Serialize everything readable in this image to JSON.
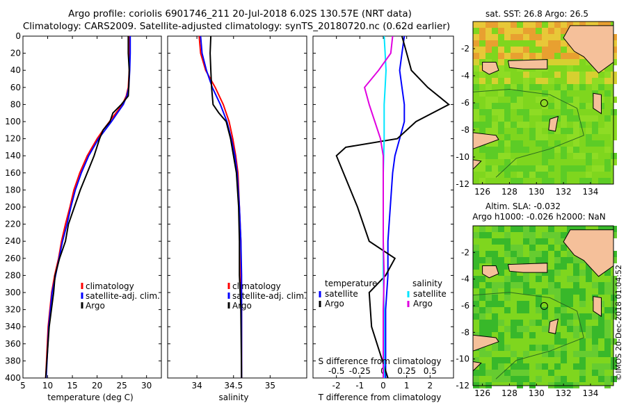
{
  "title": {
    "line1": "Argo profile: coriolis 6901746_211 20-Jul-2018 6.02S 130.57E (NRT data)",
    "line2": "Climatology: CARS2009. Satellite-adjusted climatology: synTS_20180720.nc (0.62d earlier)"
  },
  "colors": {
    "climatology": "#ff0000",
    "satellite": "#0000ff",
    "argo": "#000000",
    "t_satellite": "#0000ff",
    "s_satellite": "#00e5ff",
    "s_argo": "#e000e0",
    "ocean_deep": "#3fbf25",
    "ocean_mid": "#7fd61e",
    "land": "#f5c09a",
    "warm": "#e6a020"
  },
  "chart_data": [
    {
      "type": "line",
      "name": "temperature-panel",
      "xlabel": "temperature (deg C)",
      "ylabel": "",
      "xlim": [
        5,
        33
      ],
      "ylim": [
        400,
        0
      ],
      "xticks": [
        "5",
        "10",
        "15",
        "20",
        "25",
        "30"
      ],
      "xtick_values": [
        5,
        10,
        15,
        20,
        25,
        30
      ],
      "yticks": [
        "0",
        "20",
        "40",
        "60",
        "80",
        "100",
        "120",
        "140",
        "160",
        "180",
        "200",
        "220",
        "240",
        "260",
        "280",
        "300",
        "320",
        "340",
        "360",
        "380",
        "400"
      ],
      "ytick_values": [
        0,
        20,
        40,
        60,
        80,
        100,
        120,
        140,
        160,
        180,
        200,
        220,
        240,
        260,
        280,
        300,
        320,
        340,
        360,
        380,
        400
      ],
      "legend": [
        "climatology",
        "satellite-adj. clim.",
        "Argo"
      ],
      "series": [
        {
          "name": "climatology",
          "color": "#ff0000",
          "x": [
            26.6,
            26.6,
            26.5,
            26.3,
            25.9,
            25.1,
            23.8,
            22.5,
            21.2,
            20.0,
            18.0,
            16.5,
            15.3,
            14.5,
            13.6,
            12.8,
            12.2,
            11.4,
            10.8,
            10.1,
            9.6
          ],
          "y": [
            0,
            20,
            40,
            60,
            70,
            80,
            90,
            100,
            110,
            120,
            140,
            160,
            180,
            200,
            220,
            240,
            260,
            280,
            300,
            340,
            400
          ]
        },
        {
          "name": "satellite-adj. clim.",
          "color": "#0000ff",
          "x": [
            26.7,
            26.7,
            26.6,
            26.4,
            26.0,
            25.3,
            24.1,
            22.9,
            21.6,
            20.3,
            18.3,
            16.8,
            15.6,
            14.7,
            13.9,
            13.0,
            12.3,
            11.6,
            10.9,
            10.2,
            9.7
          ],
          "y": [
            0,
            20,
            40,
            60,
            70,
            80,
            90,
            100,
            110,
            120,
            140,
            160,
            180,
            200,
            220,
            240,
            260,
            280,
            300,
            340,
            400
          ]
        },
        {
          "name": "Argo",
          "color": "#000000",
          "x": [
            26.3,
            26.3,
            26.5,
            26.4,
            26.3,
            24.9,
            23.2,
            22.6,
            21.2,
            20.5,
            19.4,
            18.0,
            16.6,
            15.4,
            14.2,
            13.6,
            12.4,
            11.5,
            11.2,
            10.3,
            9.6
          ],
          "y": [
            0,
            20,
            40,
            60,
            70,
            80,
            90,
            100,
            110,
            120,
            140,
            160,
            180,
            200,
            220,
            240,
            260,
            280,
            300,
            340,
            400
          ]
        }
      ]
    },
    {
      "type": "line",
      "name": "salinity-panel",
      "xlabel": "salinity",
      "xlim": [
        33.6,
        35.5
      ],
      "ylim": [
        400,
        0
      ],
      "xticks": [
        "34",
        "34.5",
        "35"
      ],
      "xtick_values": [
        34,
        34.5,
        35
      ],
      "legend": [
        "climatology",
        "satellite-adj. clim.",
        "Argo"
      ],
      "series": [
        {
          "name": "climatology",
          "color": "#ff0000",
          "x": [
            34.03,
            34.05,
            34.12,
            34.25,
            34.36,
            34.44,
            34.49,
            34.53,
            34.56,
            34.58,
            34.6,
            34.6,
            34.61,
            34.61
          ],
          "y": [
            0,
            20,
            40,
            60,
            80,
            100,
            120,
            140,
            160,
            200,
            240,
            280,
            320,
            400
          ]
        },
        {
          "name": "satellite-adj. clim.",
          "color": "#0000ff",
          "x": [
            34.05,
            34.07,
            34.13,
            34.21,
            34.32,
            34.41,
            34.47,
            34.52,
            34.55,
            34.58,
            34.6,
            34.61,
            34.61,
            34.61
          ],
          "y": [
            0,
            20,
            40,
            60,
            80,
            100,
            120,
            140,
            160,
            200,
            240,
            280,
            320,
            400
          ]
        },
        {
          "name": "Argo",
          "color": "#000000",
          "x": [
            34.19,
            34.18,
            34.19,
            34.2,
            34.22,
            34.3,
            34.4,
            34.46,
            34.5,
            34.54,
            34.57,
            34.58,
            34.58,
            34.6,
            34.61
          ],
          "y": [
            0,
            20,
            40,
            60,
            80,
            90,
            100,
            120,
            140,
            160,
            200,
            240,
            280,
            320,
            400
          ]
        }
      ]
    },
    {
      "type": "line",
      "name": "difference-panel",
      "xlabel": "T difference from climatology",
      "top_axis_label": "S difference from climatology",
      "xlim": [
        -3,
        3
      ],
      "ylim": [
        400,
        0
      ],
      "xticks": [
        "-2",
        "-1",
        "0",
        "1",
        "2"
      ],
      "xtick_values": [
        -2,
        -1,
        0,
        1,
        2
      ],
      "s_xticks": [
        "-0.5",
        "-0.25",
        "0",
        "0.25",
        "0.5"
      ],
      "s_xtick_values": [
        -0.5,
        -0.25,
        0,
        0.25,
        0.5
      ],
      "legend_temperature_title": "temperature",
      "legend_salinity_title": "salinity",
      "legend_temperature": [
        "satellite",
        "Argo"
      ],
      "legend_salinity": [
        "satellite",
        "Argo"
      ],
      "series": [
        {
          "name": "T satellite",
          "color": "#0000ff",
          "axis": "T",
          "x": [
            0.9,
            0.8,
            0.7,
            0.8,
            0.9,
            0.9,
            0.7,
            0.5,
            0.4,
            0.3,
            0.2,
            0.2,
            0.1,
            0.1
          ],
          "y": [
            0,
            20,
            40,
            60,
            80,
            100,
            120,
            140,
            160,
            200,
            240,
            280,
            320,
            400
          ]
        },
        {
          "name": "T Argo",
          "color": "#000000",
          "axis": "T",
          "x": [
            0.8,
            1.0,
            1.2,
            1.9,
            2.8,
            1.4,
            0.6,
            -1.6,
            -2.0,
            -1.4,
            -1.1,
            -0.6,
            0.5,
            0.1,
            -0.6,
            -0.5,
            0.2
          ],
          "y": [
            0,
            20,
            40,
            60,
            80,
            100,
            120,
            130,
            140,
            180,
            200,
            240,
            260,
            280,
            300,
            340,
            400
          ]
        },
        {
          "name": "S satellite",
          "color": "#00e5ff",
          "axis": "S",
          "x": [
            0.01,
            0.02,
            0.03,
            0.02,
            0.01,
            0.01,
            0.0,
            0.0,
            0.0,
            0.0,
            0.01,
            0.01
          ],
          "y": [
            0,
            20,
            40,
            60,
            80,
            120,
            160,
            200,
            240,
            280,
            320,
            400
          ]
        },
        {
          "name": "S Argo",
          "color": "#e000e0",
          "axis": "S",
          "x": [
            0.1,
            0.08,
            -0.05,
            -0.2,
            -0.15,
            -0.09,
            -0.03,
            0.0,
            0.0,
            0.0,
            0.0,
            0.01,
            0.0,
            0.0
          ],
          "y": [
            0,
            20,
            40,
            60,
            80,
            100,
            120,
            140,
            160,
            200,
            240,
            280,
            320,
            400
          ]
        }
      ]
    },
    {
      "type": "heatmap",
      "name": "sst-map",
      "title": "sat. SST: 26.8 Argo: 26.5",
      "xlim": [
        125.3,
        135.7
      ],
      "ylim": [
        -12,
        0
      ],
      "xticks": [
        "126",
        "128",
        "130",
        "132",
        "134"
      ],
      "xtick_values": [
        126,
        128,
        130,
        132,
        134
      ],
      "yticks": [
        "-2",
        "-4",
        "-6",
        "-8",
        "-10",
        "-12"
      ],
      "ytick_values": [
        -2,
        -4,
        -6,
        -8,
        -10,
        -12
      ],
      "float_position": {
        "lon": 130.57,
        "lat": -6.02
      }
    },
    {
      "type": "heatmap",
      "name": "sla-map",
      "title_line1": "Altim. SLA: -0.032",
      "title_line2": "Argo h1000: -0.026 h2000: NaN",
      "xlim": [
        125.3,
        135.7
      ],
      "ylim": [
        -12,
        0
      ],
      "xticks": [
        "126",
        "128",
        "130",
        "132",
        "134"
      ],
      "xtick_values": [
        126,
        128,
        130,
        132,
        134
      ],
      "yticks": [
        "-2",
        "-4",
        "-6",
        "-8",
        "-10",
        "-12"
      ],
      "ytick_values": [
        -2,
        -4,
        -6,
        -8,
        -10,
        -12
      ],
      "float_position": {
        "lon": 130.57,
        "lat": -6.02
      }
    }
  ],
  "credit": "©IMOS 20-Dec-2018 01:04:52"
}
